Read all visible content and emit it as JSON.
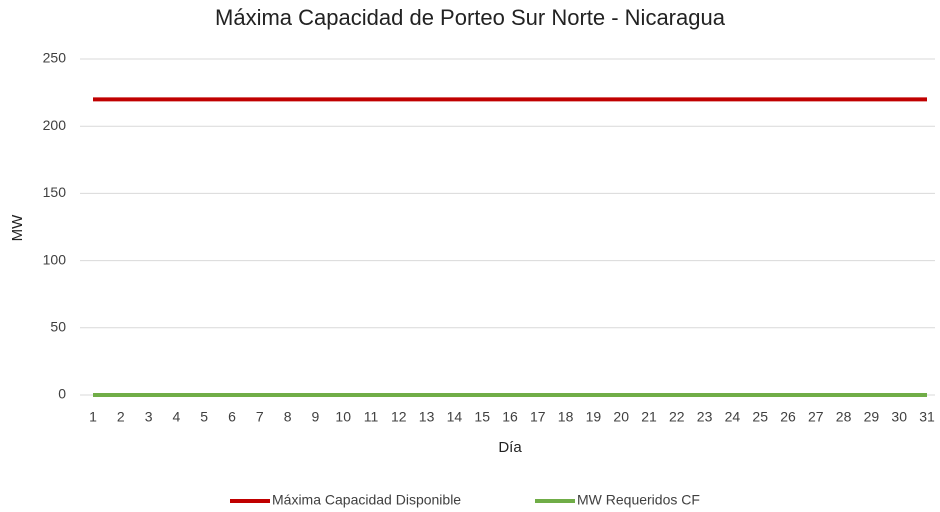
{
  "chart_data": {
    "type": "line",
    "title": "Máxima Capacidad de Porteo Sur Norte - Nicaragua",
    "x_label": "Día",
    "y_label": "MW",
    "categories": [
      1,
      2,
      3,
      4,
      5,
      6,
      7,
      8,
      9,
      10,
      11,
      12,
      13,
      14,
      15,
      16,
      17,
      18,
      19,
      20,
      21,
      22,
      23,
      24,
      25,
      26,
      27,
      28,
      29,
      30,
      31
    ],
    "series": [
      {
        "name": "Máxima Capacidad Disponible",
        "color": "#c00000",
        "values": [
          220,
          220,
          220,
          220,
          220,
          220,
          220,
          220,
          220,
          220,
          220,
          220,
          220,
          220,
          220,
          220,
          220,
          220,
          220,
          220,
          220,
          220,
          220,
          220,
          220,
          220,
          220,
          220,
          220,
          220,
          220
        ]
      },
      {
        "name": "MW Requeridos CF",
        "color": "#70ad47",
        "values": [
          0,
          0,
          0,
          0,
          0,
          0,
          0,
          0,
          0,
          0,
          0,
          0,
          0,
          0,
          0,
          0,
          0,
          0,
          0,
          0,
          0,
          0,
          0,
          0,
          0,
          0,
          0,
          0,
          0,
          0,
          0
        ]
      }
    ],
    "ylim": [
      0,
      250
    ],
    "yticks": [
      0,
      50,
      100,
      150,
      200,
      250
    ],
    "grid": true,
    "legend": "bottom"
  }
}
